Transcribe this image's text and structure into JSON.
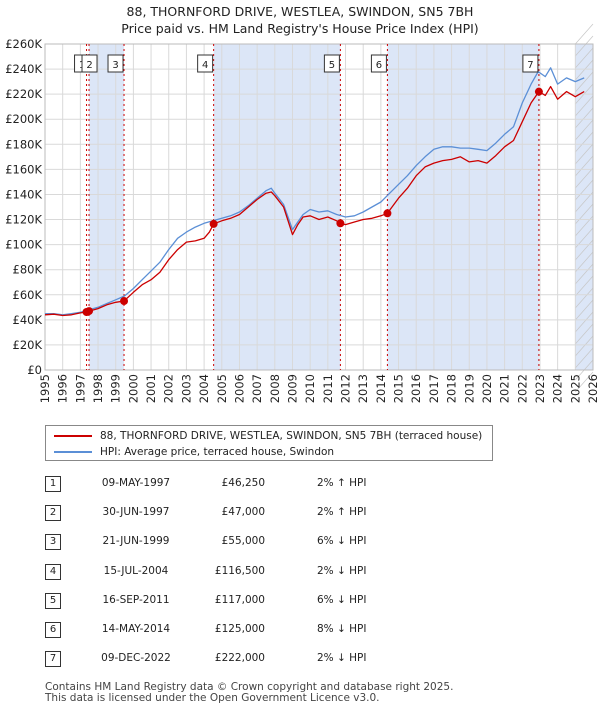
{
  "header": {
    "title": "88, THORNFORD DRIVE, WESTLEA, SWINDON, SN5 7BH",
    "subtitle": "Price paid vs. HM Land Registry's House Price Index (HPI)"
  },
  "colors": {
    "property": "#cc0000",
    "hpi": "#5b8fd6",
    "shade": "#dce6f7",
    "grid": "#d9d9d9",
    "marker_line": "#cc0000"
  },
  "chart_data": {
    "type": "line",
    "title": "88, THORNFORD DRIVE, WESTLEA, SWINDON, SN5 7BH",
    "subtitle": "Price paid vs. HM Land Registry's House Price Index (HPI)",
    "xlabel": "",
    "ylabel": "",
    "xlim": [
      1995,
      2026
    ],
    "ylim": [
      0,
      260000
    ],
    "y_ticks": [
      0,
      20000,
      40000,
      60000,
      80000,
      100000,
      120000,
      140000,
      160000,
      180000,
      200000,
      220000,
      240000,
      260000
    ],
    "y_tick_labels": [
      "£0",
      "£20K",
      "£40K",
      "£60K",
      "£80K",
      "£100K",
      "£120K",
      "£140K",
      "£160K",
      "£180K",
      "£200K",
      "£220K",
      "£240K",
      "£260K"
    ],
    "x_ticks": [
      1995,
      1996,
      1997,
      1998,
      1999,
      2000,
      2001,
      2002,
      2003,
      2004,
      2005,
      2006,
      2007,
      2008,
      2009,
      2010,
      2011,
      2012,
      2013,
      2014,
      2015,
      2016,
      2017,
      2018,
      2019,
      2020,
      2021,
      2022,
      2023,
      2024,
      2025,
      2026
    ],
    "x_tick_labels": [
      "1995",
      "1996",
      "1997",
      "1998",
      "1999",
      "2000",
      "2001",
      "2002",
      "2003",
      "2004",
      "2005",
      "2006",
      "2007",
      "2008",
      "2009",
      "2010",
      "2011",
      "2012",
      "2013",
      "2014",
      "2015",
      "2016",
      "2017",
      "2018",
      "2019",
      "2020",
      "2021",
      "2022",
      "2023",
      "2024",
      "2025",
      "2026"
    ],
    "grid": true,
    "legend_position": "bottom",
    "series": [
      {
        "name": "88, THORNFORD DRIVE, WESTLEA, SWINDON, SN5 7BH (terraced house)",
        "x": [
          1995.0,
          1995.5,
          1996.0,
          1996.5,
          1997.0,
          1997.35,
          1997.5,
          1998.0,
          1998.5,
          1999.0,
          1999.47,
          2000.0,
          2000.5,
          2001.0,
          2001.5,
          2002.0,
          2002.5,
          2003.0,
          2003.5,
          2004.0,
          2004.3,
          2004.54,
          2005.0,
          2005.5,
          2006.0,
          2006.5,
          2007.0,
          2007.5,
          2007.8,
          2008.0,
          2008.5,
          2009.0,
          2009.3,
          2009.6,
          2010.0,
          2010.5,
          2011.0,
          2011.5,
          2011.71,
          2012.0,
          2012.5,
          2013.0,
          2013.5,
          2014.0,
          2014.37,
          2015.0,
          2015.5,
          2016.0,
          2016.5,
          2017.0,
          2017.5,
          2018.0,
          2018.5,
          2019.0,
          2019.5,
          2020.0,
          2020.5,
          2021.0,
          2021.5,
          2022.0,
          2022.5,
          2022.94,
          2023.3,
          2023.6,
          2024.0,
          2024.5,
          2025.0,
          2025.5
        ],
        "y": [
          44000,
          44500,
          43500,
          44000,
          45500,
          46250,
          47000,
          49000,
          52000,
          54000,
          55000,
          62000,
          68000,
          72000,
          78000,
          88000,
          96000,
          102000,
          103000,
          105000,
          110000,
          116500,
          119000,
          121000,
          124000,
          130000,
          136000,
          141000,
          142000,
          139000,
          130000,
          108000,
          116000,
          122000,
          123000,
          120000,
          122000,
          119000,
          117000,
          116000,
          118000,
          120000,
          121000,
          123000,
          125000,
          137000,
          145000,
          155000,
          162000,
          165000,
          167000,
          168000,
          170000,
          166000,
          167000,
          165000,
          171000,
          178000,
          183000,
          198000,
          213000,
          222000,
          219000,
          226000,
          216000,
          222000,
          218000,
          222000
        ]
      },
      {
        "name": "HPI: Average price, terraced house, Swindon",
        "x": [
          1995.0,
          1995.5,
          1996.0,
          1996.5,
          1997.0,
          1997.5,
          1998.0,
          1998.5,
          1999.0,
          1999.5,
          2000.0,
          2000.5,
          2001.0,
          2001.5,
          2002.0,
          2002.5,
          2003.0,
          2003.5,
          2004.0,
          2004.5,
          2005.0,
          2005.5,
          2006.0,
          2006.5,
          2007.0,
          2007.5,
          2007.8,
          2008.0,
          2008.5,
          2009.0,
          2009.3,
          2009.6,
          2010.0,
          2010.5,
          2011.0,
          2011.5,
          2012.0,
          2012.5,
          2013.0,
          2013.5,
          2014.0,
          2014.5,
          2015.0,
          2015.5,
          2016.0,
          2016.5,
          2017.0,
          2017.5,
          2018.0,
          2018.5,
          2019.0,
          2019.5,
          2020.0,
          2020.5,
          2021.0,
          2021.5,
          2022.0,
          2022.5,
          2022.9,
          2023.3,
          2023.6,
          2024.0,
          2024.5,
          2025.0,
          2025.5
        ],
        "y": [
          45000,
          45000,
          44000,
          45000,
          46000,
          48000,
          50000,
          53000,
          56000,
          59000,
          65000,
          72000,
          79000,
          86000,
          96000,
          105000,
          110000,
          114000,
          117000,
          119000,
          121000,
          123000,
          126000,
          131000,
          137000,
          143000,
          145000,
          141000,
          132000,
          112000,
          118000,
          124000,
          128000,
          126000,
          127000,
          124000,
          122000,
          123000,
          126000,
          130000,
          134000,
          141000,
          148000,
          155000,
          163000,
          170000,
          176000,
          178000,
          178000,
          177000,
          177000,
          176000,
          175000,
          181000,
          188000,
          194000,
          213000,
          228000,
          238000,
          234000,
          241000,
          228000,
          233000,
          230000,
          233000
        ]
      }
    ],
    "sales": [
      {
        "label": "1",
        "date": "09-MAY-1997",
        "x": 1997.35,
        "price": 46250,
        "hpi": "2% ↑ HPI"
      },
      {
        "label": "2",
        "date": "30-JUN-1997",
        "x": 1997.49,
        "price": 47000,
        "hpi": "2% ↑ HPI"
      },
      {
        "label": "3",
        "date": "21-JUN-1999",
        "x": 1999.47,
        "price": 55000,
        "hpi": "6% ↓ HPI"
      },
      {
        "label": "4",
        "date": "15-JUL-2004",
        "x": 2004.54,
        "price": 116500,
        "hpi": "2% ↓ HPI"
      },
      {
        "label": "5",
        "date": "16-SEP-2011",
        "x": 2011.71,
        "price": 117000,
        "hpi": "6% ↓ HPI"
      },
      {
        "label": "6",
        "date": "14-MAY-2014",
        "x": 2014.37,
        "price": 125000,
        "hpi": "8% ↓ HPI"
      },
      {
        "label": "7",
        "date": "09-DEC-2022",
        "x": 2022.94,
        "price": 222000,
        "hpi": "2% ↓ HPI"
      }
    ],
    "shaded_spans": [
      [
        1997.49,
        1999.47
      ],
      [
        2004.54,
        2011.71
      ],
      [
        2014.37,
        2022.94
      ],
      [
        2025.0,
        2026.0
      ]
    ]
  },
  "legend": {
    "property_label": "88, THORNFORD DRIVE, WESTLEA, SWINDON, SN5 7BH (terraced house)",
    "hpi_label": "HPI: Average price, terraced house, Swindon"
  },
  "table": [
    {
      "num": "1",
      "date": "09-MAY-1997",
      "price": "£46,250",
      "hpi": "2% ↑ HPI"
    },
    {
      "num": "2",
      "date": "30-JUN-1997",
      "price": "£47,000",
      "hpi": "2% ↑ HPI"
    },
    {
      "num": "3",
      "date": "21-JUN-1999",
      "price": "£55,000",
      "hpi": "6% ↓ HPI"
    },
    {
      "num": "4",
      "date": "15-JUL-2004",
      "price": "£116,500",
      "hpi": "2% ↓ HPI"
    },
    {
      "num": "5",
      "date": "16-SEP-2011",
      "price": "£117,000",
      "hpi": "6% ↓ HPI"
    },
    {
      "num": "6",
      "date": "14-MAY-2014",
      "price": "£125,000",
      "hpi": "8% ↓ HPI"
    },
    {
      "num": "7",
      "date": "09-DEC-2022",
      "price": "£222,000",
      "hpi": "2% ↓ HPI"
    }
  ],
  "footer": {
    "line1": "Contains HM Land Registry data © Crown copyright and database right 2025.",
    "line2": "This data is licensed under the Open Government Licence v3.0."
  }
}
